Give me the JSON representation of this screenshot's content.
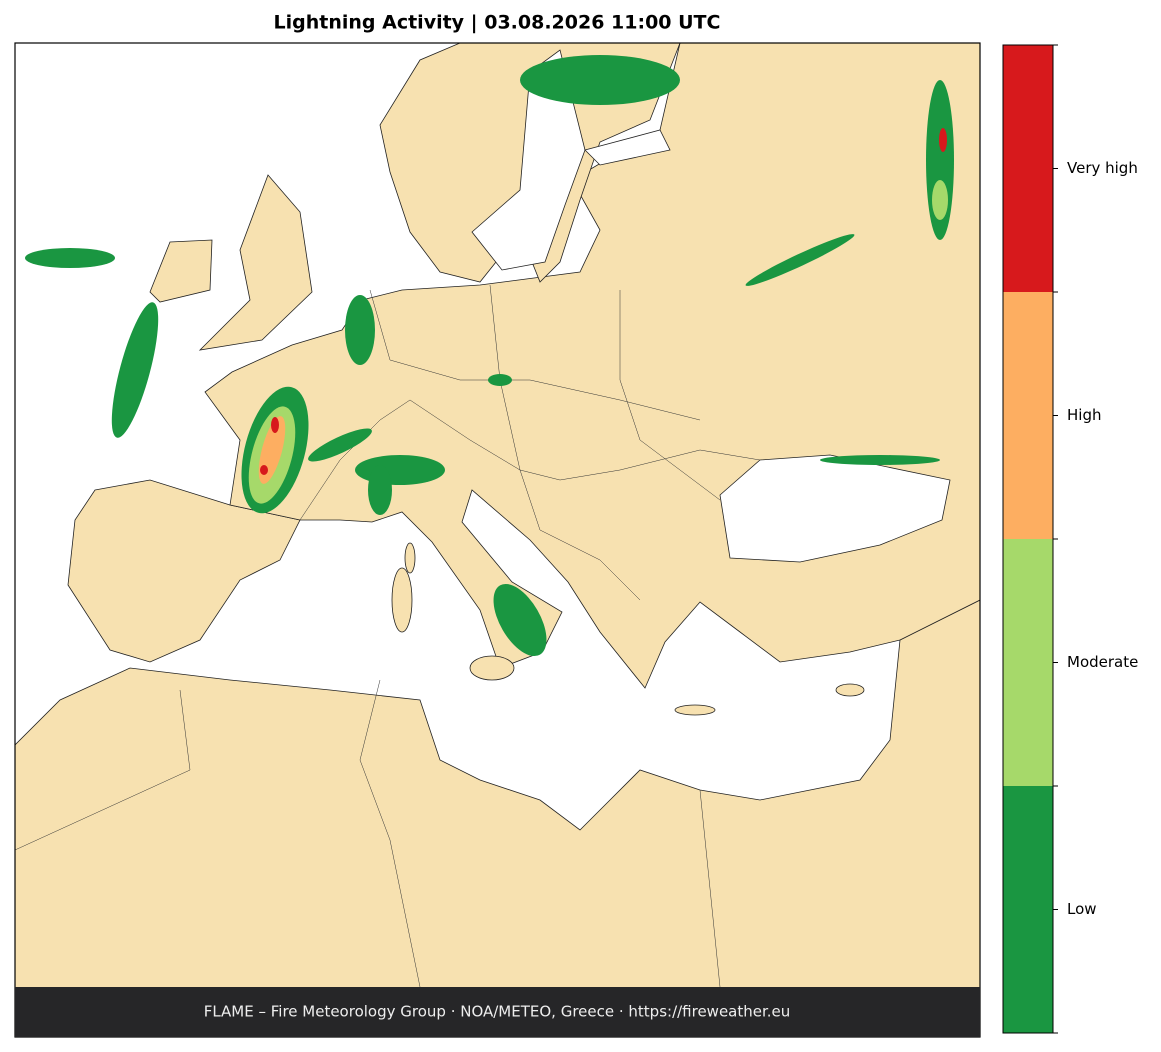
{
  "title": "Lightning Activity  |  03.08.2026 11:00 UTC",
  "footer": "FLAME – Fire Meteorology Group · NOA/METEO, Greece · https://fireweather.eu",
  "legend": {
    "levels": [
      {
        "label": "Low",
        "color": "#1a9641"
      },
      {
        "label": "Moderate",
        "color": "#a6d96a"
      },
      {
        "label": "High",
        "color": "#fdae61"
      },
      {
        "label": "Very high",
        "color": "#d7191c"
      }
    ]
  }
}
